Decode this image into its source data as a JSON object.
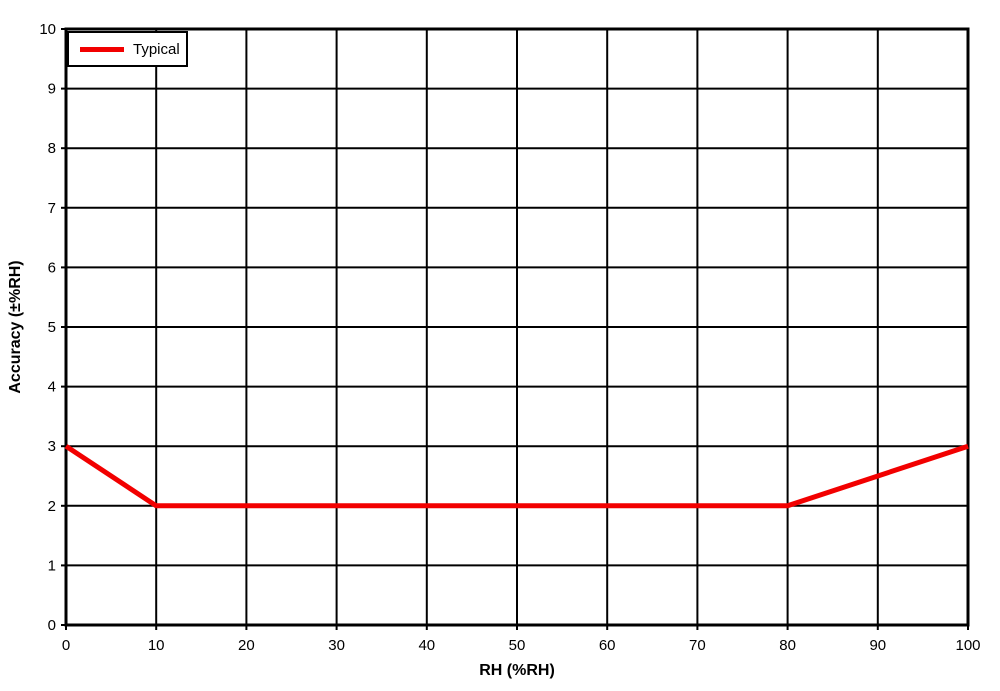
{
  "chart_data": {
    "type": "line",
    "title": "",
    "xlabel": "RH (%RH)",
    "ylabel": "Accuracy (±%RH)",
    "xlim": [
      0,
      100
    ],
    "ylim": [
      0,
      10
    ],
    "xticks": [
      0,
      10,
      20,
      30,
      40,
      50,
      60,
      70,
      80,
      90,
      100
    ],
    "yticks": [
      0,
      1,
      2,
      3,
      4,
      5,
      6,
      7,
      8,
      9,
      10
    ],
    "grid": true,
    "legend_position": "top-left",
    "colors": {
      "series": "#f20000",
      "grid": "#000000",
      "border": "#000000",
      "text": "#000000",
      "background": "#ffffff"
    },
    "series": [
      {
        "name": "Typical",
        "color": "#f20000",
        "points": [
          [
            0,
            3
          ],
          [
            10,
            2
          ],
          [
            80,
            2
          ],
          [
            100,
            3
          ]
        ]
      }
    ]
  }
}
